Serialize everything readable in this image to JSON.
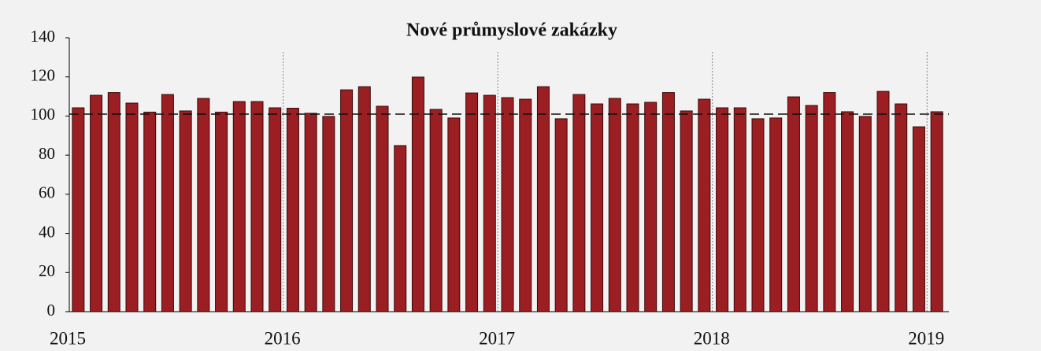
{
  "chart_data": {
    "type": "bar",
    "title": "Nové průmyslové zakázky",
    "categories": [
      "2015",
      null,
      null,
      null,
      null,
      null,
      null,
      null,
      null,
      null,
      null,
      null,
      "2016",
      null,
      null,
      null,
      null,
      null,
      null,
      null,
      null,
      null,
      null,
      null,
      "2017",
      null,
      null,
      null,
      null,
      null,
      null,
      null,
      null,
      null,
      null,
      null,
      "2018",
      null,
      null,
      null,
      null,
      null,
      null,
      null,
      null,
      null,
      null,
      null,
      "2019"
    ],
    "values": [
      104.2,
      110.6,
      112,
      106.6,
      102,
      111,
      102.6,
      109,
      102,
      107.4,
      107.4,
      104.2,
      104,
      101.4,
      99.8,
      113.4,
      115,
      105,
      84.9,
      119.9,
      103.4,
      99,
      111.8,
      110.6,
      109.4,
      108.6,
      115,
      98.6,
      111,
      106.2,
      109,
      106.2,
      107,
      112,
      102.6,
      108.6,
      104.2,
      104.2,
      98.6,
      99,
      109.8,
      105.4,
      112,
      102.2,
      99.8,
      112.6,
      106.2,
      94.5,
      102.2
    ],
    "color": "#9b1f22",
    "reference_line": 101,
    "ylim": [
      0,
      140
    ],
    "yticks": [
      0,
      20,
      40,
      60,
      80,
      100,
      120,
      140
    ],
    "grid": false
  }
}
